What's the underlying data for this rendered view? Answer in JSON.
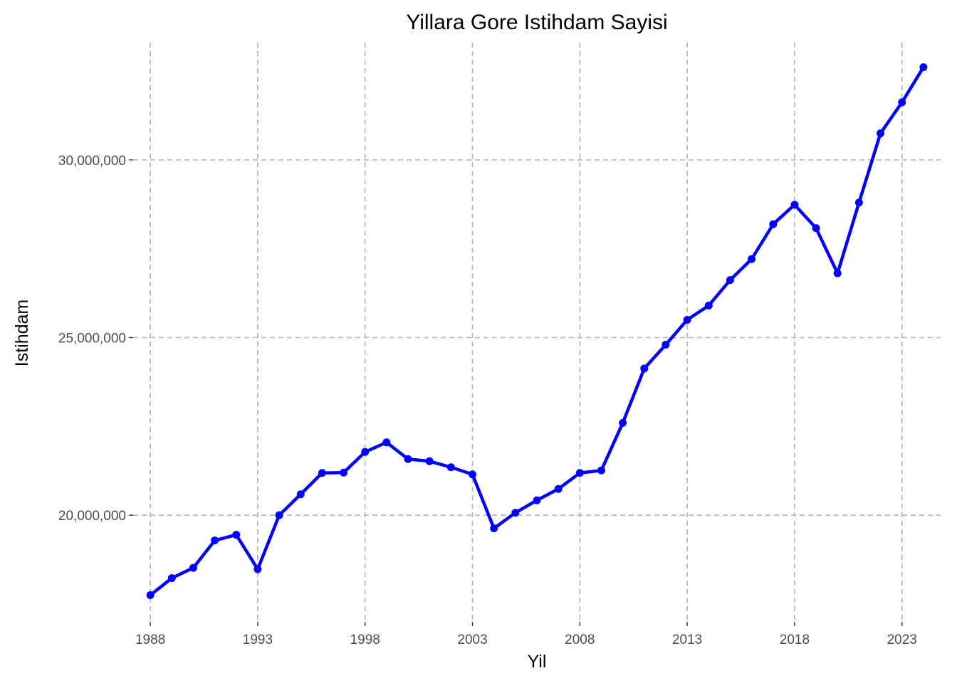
{
  "chart_data": {
    "type": "line",
    "title": "Yillara Gore Istihdam Sayisi",
    "xlabel": "Yil",
    "ylabel": "Istihdam",
    "x_ticks": [
      1988,
      1993,
      1998,
      2003,
      2008,
      2013,
      2018,
      2023
    ],
    "x_tick_labels": [
      "1988",
      "1993",
      "1998",
      "2003",
      "2008",
      "2013",
      "2018",
      "2023"
    ],
    "y_ticks": [
      20000000,
      25000000,
      30000000
    ],
    "y_tick_labels": [
      "20,000,000",
      "25,000,000",
      "30,000,000"
    ],
    "xlim": [
      1987.2,
      2024.8
    ],
    "ylim": [
      17000000,
      33300000
    ],
    "grid": true,
    "grid_style": "dashed",
    "series_color": "#0000ff",
    "series": [
      {
        "x": [
          1988,
          1989,
          1990,
          1991,
          1992,
          1993,
          1994,
          1995,
          1996,
          1997,
          1998,
          1999,
          2000,
          2001,
          2002,
          2003,
          2004,
          2005,
          2006,
          2007,
          2008,
          2009,
          2010,
          2011,
          2012,
          2013,
          2014,
          2015,
          2016,
          2017,
          2018,
          2019,
          2020,
          2021,
          2022,
          2023,
          2024
        ],
        "values": [
          17750000,
          18230000,
          18520000,
          19290000,
          19450000,
          18480000,
          20000000,
          20590000,
          21190000,
          21200000,
          21780000,
          22050000,
          21580000,
          21520000,
          21350000,
          21150000,
          19630000,
          20070000,
          20420000,
          20740000,
          21190000,
          21260000,
          22600000,
          24130000,
          24800000,
          25500000,
          25900000,
          26620000,
          27210000,
          28190000,
          28740000,
          28080000,
          26810000,
          28800000,
          30750000,
          31620000,
          32610000
        ]
      }
    ]
  }
}
